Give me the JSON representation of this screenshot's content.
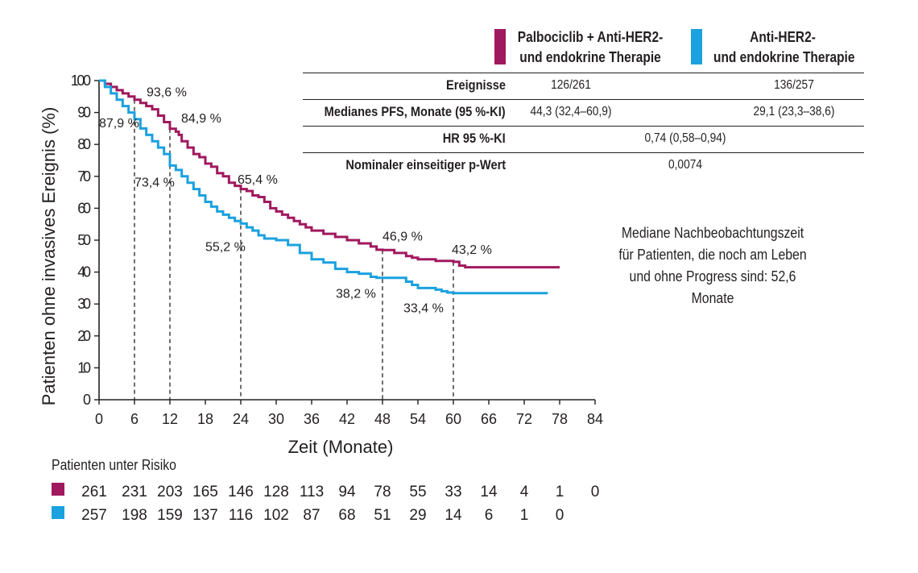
{
  "legend": {
    "palbociclib": {
      "label_line1": "Palbociclib + Anti-HER2-",
      "label_line2": "und endokrine Therapie",
      "color": "#a0195e"
    },
    "anti_her2": {
      "label_line1": "Anti-HER2-",
      "label_line2": "und endokrine Therapie",
      "color": "#1ba1df"
    }
  },
  "stats_table": {
    "rows": [
      {
        "label": "Ereignisse",
        "palbociclib": "126/261",
        "anti_her2": "136/257"
      },
      {
        "label": "Medianes PFS, Monate (95 %-KI)",
        "palbociclib": "44,3 (32,4–60,9)",
        "anti_her2": "29,1 (23,3–38,6)"
      },
      {
        "label": "HR 95 %-KI",
        "combined": "0,74 (0,58–0,94)"
      },
      {
        "label": "Nominaler einseitiger p-Wert",
        "combined": "0,0074"
      }
    ]
  },
  "followup_note": {
    "line1": "Mediane Nachbeobachtungszeit",
    "line2": "für Patienten, die noch am Leben",
    "line3": "und ohne Progress sind: 52,6 Monate"
  },
  "risk_table": {
    "title": "Patienten unter Risiko",
    "palbociclib": [
      "261",
      "231",
      "203",
      "165",
      "146",
      "128",
      "113",
      "94",
      "78",
      "55",
      "33",
      "14",
      "4",
      "1",
      "0"
    ],
    "anti_her2": [
      "257",
      "198",
      "159",
      "137",
      "116",
      "102",
      "87",
      "68",
      "51",
      "29",
      "14",
      "6",
      "1",
      "0"
    ]
  },
  "chart_data": {
    "type": "line",
    "xlabel": "Zeit (Monate)",
    "ylabel": "Patienten ohne invasives Ereignis (%)",
    "xlim": [
      0,
      84
    ],
    "ylim": [
      0,
      100
    ],
    "xticks": [
      0,
      6,
      12,
      18,
      24,
      30,
      36,
      42,
      48,
      54,
      60,
      66,
      72,
      78,
      84
    ],
    "yticks": [
      0,
      10,
      20,
      30,
      40,
      50,
      60,
      70,
      80,
      90,
      100
    ],
    "grid": false,
    "series": [
      {
        "name": "Palbociclib + Anti-HER2- und endokrine Therapie",
        "color": "#a0195e",
        "x": [
          0,
          1,
          2,
          3,
          4,
          5,
          6,
          7,
          8,
          9,
          10,
          11,
          12,
          13,
          13.5,
          14,
          15,
          16,
          17,
          18,
          19,
          20,
          21,
          22,
          23,
          24,
          25,
          26,
          27,
          28,
          29,
          30,
          31,
          32,
          33,
          34,
          35,
          36,
          38,
          40,
          42,
          44,
          46,
          47,
          48,
          50,
          52,
          53,
          54,
          56,
          57,
          58,
          60,
          61,
          62,
          64,
          66,
          70,
          74,
          78
        ],
        "y": [
          100,
          99,
          98,
          97,
          96,
          95,
          94,
          93,
          92,
          91,
          89,
          87,
          84.9,
          84,
          83,
          81,
          79,
          77,
          76,
          74,
          73,
          71,
          70,
          68,
          67,
          66,
          65.4,
          64,
          63.5,
          62,
          60,
          59,
          58,
          57,
          56,
          55,
          54,
          53,
          52,
          51,
          50,
          49,
          48,
          47,
          46.9,
          46,
          45,
          44.5,
          44,
          44,
          43.5,
          43.5,
          43.2,
          42,
          41.5,
          41.5,
          41.5,
          41.5,
          41.5,
          41.5
        ],
        "annotations": [
          {
            "label": "93,6 %",
            "x": 6,
            "y": 93.6
          },
          {
            "label": "84,9 %",
            "x": 12,
            "y": 84.9
          },
          {
            "label": "65,4 %",
            "x": 24,
            "y": 65.4
          },
          {
            "label": "46,9 %",
            "x": 48,
            "y": 46.9
          },
          {
            "label": "43,2 %",
            "x": 60,
            "y": 43.2
          }
        ]
      },
      {
        "name": "Anti-HER2- und endokrine Therapie",
        "color": "#1ba1df",
        "x": [
          0,
          1,
          2,
          3,
          4,
          5,
          6,
          7,
          8,
          9,
          10,
          11,
          12,
          13,
          14,
          15,
          16,
          17,
          18,
          19,
          20,
          21,
          22,
          23,
          24,
          25,
          26,
          27,
          28,
          30,
          32,
          34,
          36,
          38,
          40,
          42,
          44,
          46,
          47,
          48,
          50,
          52,
          53,
          54,
          56,
          57,
          58,
          59,
          60,
          62,
          66,
          70,
          74,
          76
        ],
        "y": [
          100,
          98,
          96,
          94,
          92,
          90,
          87.9,
          85,
          83,
          81,
          79,
          77,
          73.4,
          72,
          70,
          68,
          66,
          64,
          62,
          60.5,
          59,
          58,
          57,
          56,
          55.2,
          54,
          53,
          51.5,
          50.5,
          50,
          48.5,
          46,
          44,
          43,
          41,
          40,
          39.5,
          38.5,
          38.2,
          38.2,
          38.2,
          37,
          36,
          35,
          35,
          34.5,
          34,
          33.6,
          33.4,
          33.4,
          33.4,
          33.4,
          33.4,
          33.4
        ],
        "annotations": [
          {
            "label": "87,9 %",
            "x": 6,
            "y": 87.9
          },
          {
            "label": "73,4 %",
            "x": 12,
            "y": 73.4
          },
          {
            "label": "55,2 %",
            "x": 24,
            "y": 55.2
          },
          {
            "label": "38,2 %",
            "x": 48,
            "y": 38.2
          },
          {
            "label": "33,4 %",
            "x": 60,
            "y": 33.4
          }
        ]
      }
    ],
    "reference_lines_x": [
      6,
      12,
      24,
      48,
      60
    ]
  }
}
